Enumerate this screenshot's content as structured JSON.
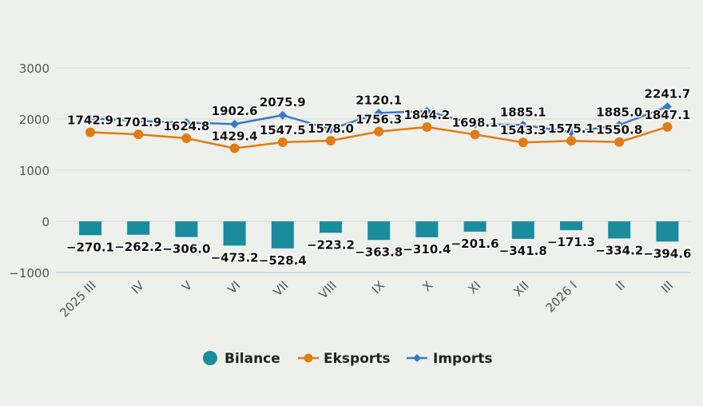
{
  "chart_data": {
    "type": "bar+line",
    "categories": [
      "2025 III",
      "IV",
      "V",
      "VI",
      "VII",
      "VIII",
      "IX",
      "X",
      "XI",
      "XII",
      "2026 I",
      "II",
      "III"
    ],
    "series": [
      {
        "name": "Bilance",
        "type": "bar",
        "color": "#1b8c9e",
        "values": [
          -270.1,
          -262.2,
          -306.0,
          -473.2,
          -528.4,
          -223.2,
          -363.8,
          -310.4,
          -201.6,
          -341.8,
          -171.3,
          -334.2,
          -394.6
        ],
        "labels": [
          "−270.1",
          "−262.2",
          "−306.0",
          "−473.2",
          "−528.4",
          "−223.2",
          "−363.8",
          "−310.4",
          "−201.6",
          "−341.8",
          "−171.3",
          "−334.2",
          "−394.6"
        ]
      },
      {
        "name": "Eksports",
        "type": "line",
        "color": "#e07c14",
        "marker": "circle",
        "values": [
          1742.9,
          1701.9,
          1624.8,
          1429.4,
          1547.5,
          1578.0,
          1756.3,
          1844.2,
          1698.1,
          1543.3,
          1575.1,
          1550.8,
          1847.1
        ],
        "labels": [
          "1742.9",
          "1701.9",
          "1624.8",
          "1429.4",
          "1547.5",
          "1578.0",
          "1756.3",
          "1844.2",
          "1698.1",
          "1543.3",
          "1575.1",
          "1550.8",
          "1847.1"
        ]
      },
      {
        "name": "Imports",
        "type": "line",
        "color": "#3a78c9",
        "marker": "diamond",
        "values": [
          2013.0,
          1964.1,
          1930.8,
          1902.6,
          2075.9,
          1801.2,
          2120.1,
          2154.6,
          1899.7,
          1885.1,
          1746.4,
          1885.0,
          2241.7
        ],
        "labels": [
          "",
          "",
          "",
          "1902.6",
          "2075.9",
          "",
          "2120.1",
          "",
          "",
          "1885.1",
          "",
          "1885.0",
          "2241.7"
        ]
      }
    ],
    "y_ticks": [
      "3000",
      "2000",
      "1000",
      "0",
      "−1000"
    ],
    "y_tick_values": [
      3000,
      2000,
      1000,
      0,
      -1000
    ],
    "ylim": [
      -1000,
      3000
    ],
    "grid": "horizontal",
    "legend": "bottom-center",
    "title": "",
    "xlabel": "",
    "ylabel": ""
  }
}
